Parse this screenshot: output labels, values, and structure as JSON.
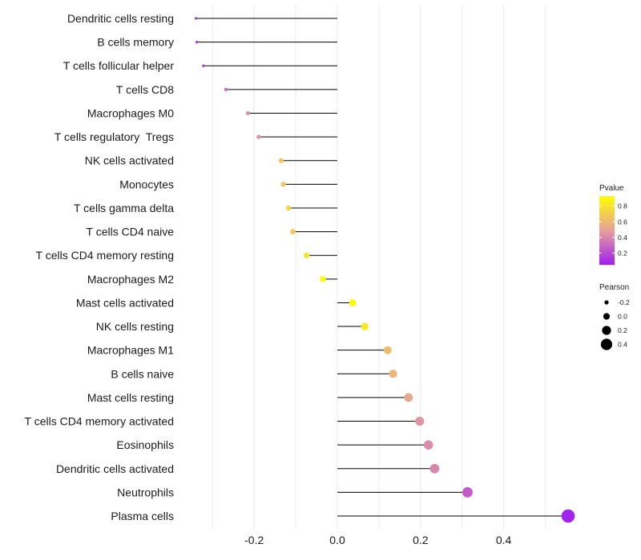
{
  "chart_data": {
    "type": "lollipop",
    "title": "",
    "xlabel": "",
    "ylabel": "",
    "xlim": [
      -0.38,
      0.575
    ],
    "x_ticks": [
      -0.2,
      0.0,
      0.2,
      0.4
    ],
    "x_tick_labels": [
      "-0.2",
      "0.0",
      "0.2",
      "0.4"
    ],
    "grid": true,
    "baseline": 0,
    "categories": [
      "Dendritic cells resting",
      "B cells memory",
      "T cells follicular helper",
      "T cells CD8",
      "Macrophages M0",
      "T cells regulatory  Tregs",
      "NK cells activated",
      "Monocytes",
      "T cells gamma delta",
      "T cells CD4 naive",
      "T cells CD4 memory resting",
      "Macrophages M2",
      "Mast cells activated",
      "NK cells resting",
      "Macrophages M1",
      "B cells naive",
      "Mast cells resting",
      "T cells CD4 memory activated",
      "Eosinophils",
      "Dendritic cells activated",
      "Neutrophils",
      "Plasma cells"
    ],
    "pearson": [
      -0.34,
      -0.338,
      -0.322,
      -0.268,
      -0.215,
      -0.189,
      -0.135,
      -0.13,
      -0.117,
      -0.107,
      -0.074,
      -0.035,
      0.037,
      0.066,
      0.121,
      0.134,
      0.171,
      0.198,
      0.219,
      0.234,
      0.313,
      0.555
    ],
    "pvalue": [
      0.12,
      0.1,
      0.15,
      0.3,
      0.42,
      0.45,
      0.65,
      0.66,
      0.72,
      0.68,
      0.8,
      0.93,
      0.9,
      0.83,
      0.62,
      0.6,
      0.52,
      0.45,
      0.42,
      0.4,
      0.26,
      0.06
    ],
    "color_legend": {
      "title": "Pvalue",
      "ticks": [
        0.8,
        0.6,
        0.4,
        0.2
      ],
      "tick_labels": [
        "0.8",
        "0.6",
        "0.4",
        "0.2"
      ],
      "range": [
        0.05,
        0.93
      ],
      "low_color": "#a020f0",
      "mid_color": "#e8a09a",
      "high_color": "#ffff00",
      "placement": "right"
    },
    "size_legend": {
      "title": "Pearson",
      "values": [
        -0.2,
        0.0,
        0.2,
        0.4
      ],
      "labels": [
        "-0.2",
        "0.0",
        "0.2",
        "0.4"
      ],
      "placement": "right"
    }
  }
}
